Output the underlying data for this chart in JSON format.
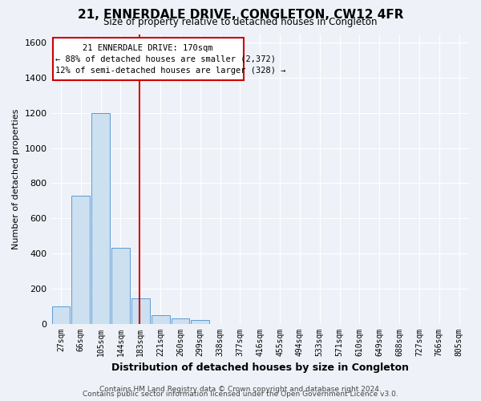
{
  "title": "21, ENNERDALE DRIVE, CONGLETON, CW12 4FR",
  "subtitle": "Size of property relative to detached houses in Congleton",
  "xlabel": "Distribution of detached houses by size in Congleton",
  "ylabel": "Number of detached properties",
  "footer1": "Contains HM Land Registry data © Crown copyright and database right 2024.",
  "footer2": "Contains public sector information licensed under the Open Government Licence v3.0.",
  "bin_labels": [
    "27sqm",
    "66sqm",
    "105sqm",
    "144sqm",
    "183sqm",
    "221sqm",
    "260sqm",
    "299sqm",
    "338sqm",
    "377sqm",
    "416sqm",
    "455sqm",
    "494sqm",
    "533sqm",
    "571sqm",
    "610sqm",
    "649sqm",
    "688sqm",
    "727sqm",
    "766sqm",
    "805sqm"
  ],
  "bar_values": [
    100,
    730,
    1200,
    430,
    145,
    50,
    28,
    20,
    0,
    0,
    0,
    0,
    0,
    0,
    0,
    0,
    0,
    0,
    0,
    0,
    0
  ],
  "bar_color": "#cce0f0",
  "bar_edge_color": "#5b9bd5",
  "ylim": [
    0,
    1650
  ],
  "yticks": [
    0,
    200,
    400,
    600,
    800,
    1000,
    1200,
    1400,
    1600
  ],
  "property_line_x": 4.0,
  "vline_color": "#cc0000",
  "annotation_text1": "21 ENNERDALE DRIVE: 170sqm",
  "annotation_text2": "← 88% of detached houses are smaller (2,372)",
  "annotation_text3": "12% of semi-detached houses are larger (328) →",
  "annotation_box_color": "#cc0000",
  "bg_color": "#eef2f8",
  "grid_color": "#ffffff"
}
